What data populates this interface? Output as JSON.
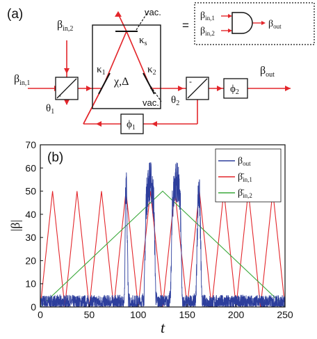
{
  "panel_a": {
    "label": "(a)",
    "beta_symbol": "β",
    "in1_sub": "in,1",
    "in2_sub": "in,2",
    "out_sub": "out",
    "theta1": "θ",
    "theta1_sub": "1",
    "theta2": "θ",
    "theta2_sub": "2",
    "kappa1": "κ",
    "kappa1_sub": "1",
    "kappa2": "κ",
    "kappa2_sub": "2",
    "kappas": "κ",
    "kappas_sub": "s",
    "chi_delta": "χ,Δ",
    "vac_top": "vac.",
    "vac_bottom": "vac.",
    "phi1": "ϕ",
    "phi1_sub": "1",
    "phi2": "ϕ",
    "phi2_sub": "2",
    "equals": "=",
    "minus1": "-",
    "minus2": "-"
  },
  "colors": {
    "beam": "#e3262b",
    "out": "#2d3e9c",
    "in1": "#e3262b",
    "in2": "#3aa83a"
  },
  "chart_data": {
    "type": "line",
    "panel_label": "(b)",
    "xlabel": "t",
    "ylabel": "|β|",
    "xlim": [
      0,
      250
    ],
    "ylim": [
      0,
      70
    ],
    "xticks": [
      "0",
      "50",
      "100",
      "150",
      "200",
      "250"
    ],
    "yticks": [
      "0",
      "10",
      "20",
      "30",
      "40",
      "50",
      "60",
      "70"
    ],
    "legend_placement": "top-right",
    "series": [
      {
        "name": "β_out",
        "name_main": "β",
        "name_sub": "out",
        "color": "#2d3e9c",
        "noise_level": 3,
        "x": [
          0,
          84,
          86,
          87,
          88,
          90,
          93,
          103,
          106,
          108,
          110,
          112,
          114,
          116,
          118,
          120,
          130,
          133,
          135,
          137,
          139,
          141,
          143,
          145,
          157,
          159,
          161,
          162,
          163,
          165,
          250
        ],
        "values": [
          2,
          2,
          4,
          45,
          50,
          3,
          2,
          2,
          4,
          45,
          52,
          55,
          52,
          45,
          4,
          2,
          2,
          4,
          45,
          52,
          55,
          52,
          45,
          2,
          2,
          4,
          45,
          50,
          45,
          2,
          2
        ]
      },
      {
        "name": "β̄_in,1",
        "name_main": "β̄",
        "name_sub": "in,1",
        "color": "#e3262b",
        "x": [
          0,
          12.5,
          25,
          37.5,
          50,
          62.5,
          75,
          87.5,
          100,
          112.5,
          125,
          137.5,
          150,
          162.5,
          175,
          187.5,
          200,
          212.5,
          225,
          237.5,
          250
        ],
        "values": [
          0,
          50,
          0,
          50,
          0,
          50,
          0,
          50,
          0,
          50,
          0,
          50,
          0,
          50,
          0,
          50,
          0,
          50,
          0,
          50,
          0
        ]
      },
      {
        "name": "β̄_in,2",
        "name_main": "β̄",
        "name_sub": "in,2",
        "color": "#3aa83a",
        "x": [
          0,
          125,
          250
        ],
        "values": [
          0,
          50,
          0
        ]
      }
    ]
  }
}
